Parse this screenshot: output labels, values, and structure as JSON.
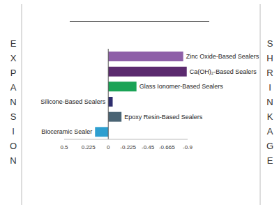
{
  "chart_data": {
    "type": "bar",
    "orientation": "horizontal",
    "categories": [
      "Zinc Oxide-Based Sealers",
      "Ca(OH)₂-Based Sealers",
      "Glass Ionomer-Based Sealers",
      "Silicone-Based Sealers",
      "Epoxy Resin-Based Sealers",
      "Bioceramic Sealer"
    ],
    "values": [
      -0.85,
      -0.89,
      -0.32,
      -0.05,
      -0.15,
      0.15
    ],
    "colors": [
      "#8e5fa8",
      "#5b2a6e",
      "#1aa356",
      "#2e2e6e",
      "#4a6474",
      "#2e9fd0"
    ],
    "xlim": [
      0.5,
      -0.9
    ],
    "xticks": [
      0.5,
      0.225,
      0,
      -0.225,
      -0.45,
      -0.665,
      -0.9
    ],
    "annotations": [
      "EXPANSION",
      "SHRINKAGE"
    ],
    "grid": false,
    "tick_labels": "x"
  }
}
